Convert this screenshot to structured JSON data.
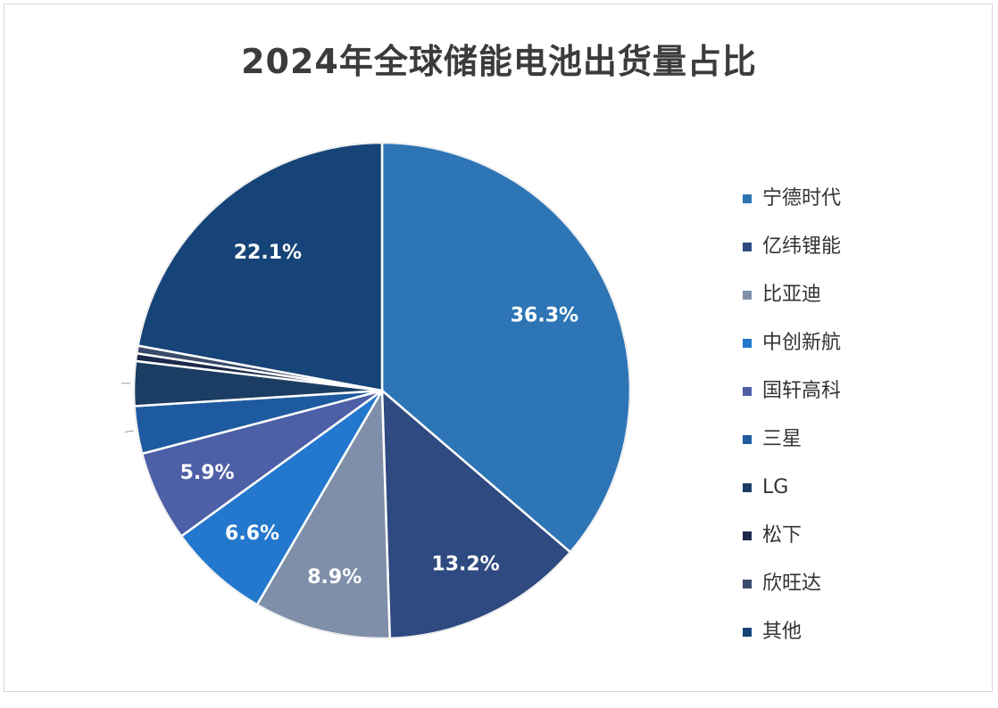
{
  "chart_data": {
    "type": "pie",
    "title": "2024年全球储能电池出货量占比",
    "legend_position": "right",
    "slices": [
      {
        "name": "宁德时代",
        "value": 36.3,
        "label": "36.3%",
        "color": "#2e75b6"
      },
      {
        "name": "亿纬锂能",
        "value": 13.2,
        "label": "13.2%",
        "color": "#2f4a80"
      },
      {
        "name": "比亚迪",
        "value": 8.9,
        "label": "8.9%",
        "color": "#7f8fa9"
      },
      {
        "name": "中创新航",
        "value": 6.6,
        "label": "6.6%",
        "color": "#2377cd"
      },
      {
        "name": "国轩高科",
        "value": 5.9,
        "label": "5.9%",
        "color": "#4d5fa6"
      },
      {
        "name": "三星",
        "value": 3.1,
        "label": "",
        "color": "#1e5aa0"
      },
      {
        "name": "LG",
        "value": 2.9,
        "label": "",
        "color": "#1c3d63"
      },
      {
        "name": "松下",
        "value": 0.5,
        "label": "",
        "color": "#1b2a4a"
      },
      {
        "name": "欣旺达",
        "value": 0.5,
        "label": "",
        "color": "#3a4a6a"
      },
      {
        "name": "其他",
        "value": 22.1,
        "label": "22.1%",
        "color": "#174478"
      }
    ]
  }
}
